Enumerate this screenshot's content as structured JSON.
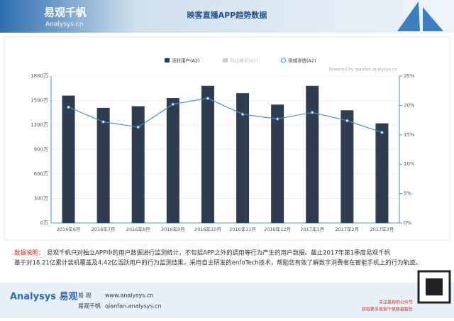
{
  "header": {
    "logo": "易观千帆",
    "logo_sub": "Analysys.cn",
    "title": "映客直播APP趋势数据"
  },
  "chart_data": {
    "type": "bar_line",
    "watermark": "Powered by qianfan.analysys.cn",
    "categories": [
      "2016年6月",
      "2016年7月",
      "2016年8月",
      "2016年9月",
      "2016年10月",
      "2016年11月",
      "2016年12月",
      "2017年1月",
      "2017年2月",
      "2017年3月"
    ],
    "series": [
      {
        "name": "活跃用户(A2)",
        "type": "bar",
        "color": "#2f3d52",
        "values": [
          1560,
          1410,
          1430,
          1530,
          1680,
          1590,
          1450,
          1680,
          1380,
          1220
        ]
      },
      {
        "name": "领域渗透(A2)",
        "type": "line",
        "axis": "y2",
        "color": "#4a8fc6",
        "values": [
          19.7,
          17.2,
          16.3,
          20.2,
          21.2,
          18.5,
          17.7,
          18.8,
          17.4,
          15.4
        ]
      }
    ],
    "legend_hidden": [
      "同比增长(A2)"
    ],
    "ylim": [
      0,
      1800
    ],
    "yticks": [
      {
        "value": 0,
        "label": "0万"
      },
      {
        "value": 300,
        "label": "300万"
      },
      {
        "value": 600,
        "label": "600万"
      },
      {
        "value": 900,
        "label": "900万"
      },
      {
        "value": 1200,
        "label": "1200万"
      },
      {
        "value": 1500,
        "label": "1500万"
      },
      {
        "value": 1800,
        "label": "1800万"
      }
    ],
    "y2lim": [
      0,
      25
    ],
    "y2ticks": [
      {
        "value": 0,
        "label": "0%"
      },
      {
        "value": 5,
        "label": "5%"
      },
      {
        "value": 10,
        "label": "10%"
      },
      {
        "value": 15,
        "label": "15%"
      },
      {
        "value": 20,
        "label": "20%"
      },
      {
        "value": 25,
        "label": "25%"
      }
    ],
    "grid": true,
    "legend": "top"
  },
  "note": {
    "label": "数据说明：",
    "line1": "易观千帆只对独立APP中的用户数据进行监测统计，不包括APP之外的调用等行为产生的用户数据。截止2017年第1季度易观千帆",
    "line2": "基于对18.21亿累计装机覆盖及4.42亿活跃用户的行为监测结果，采用自主研发的enfoTech技术，帮助您有效了解数字消费者在智能手机上的行为轨迹。"
  },
  "footer": {
    "brand": "Analysys 易观",
    "site1_name": "易  观",
    "site1": "www.analysys.cn",
    "site2_name": "易观千帆",
    "site2": "qianfan.analysys.cn",
    "qr1": "关注易观的公众号",
    "qr2": "获取更多易观千帆数据报告"
  }
}
